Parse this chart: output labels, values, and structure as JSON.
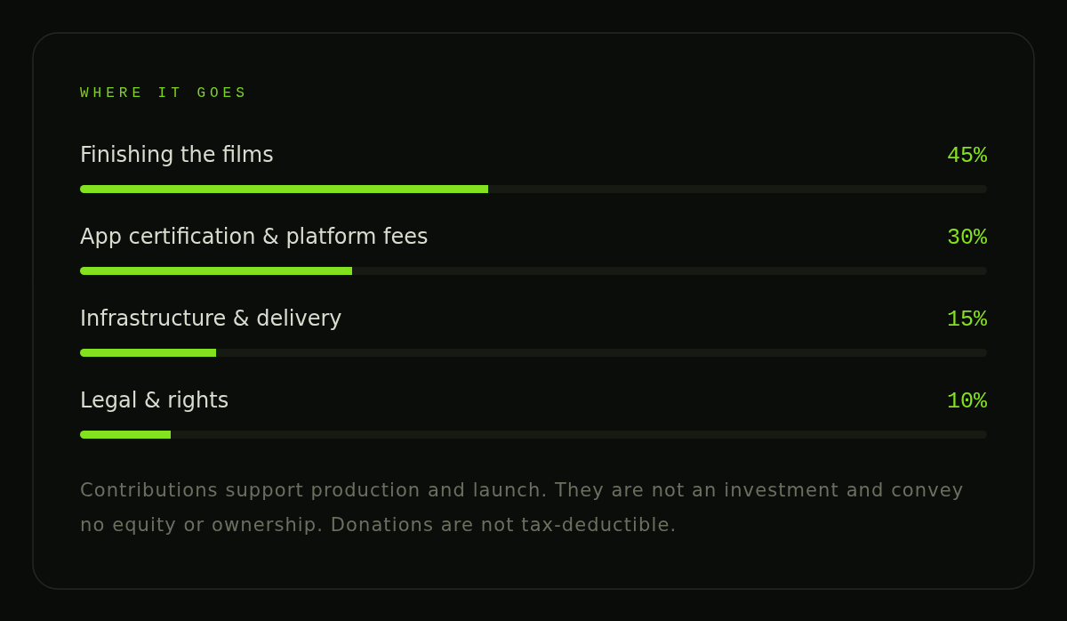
{
  "chart_data": {
    "type": "bar",
    "orientation": "horizontal",
    "title": "WHERE IT GOES",
    "categories": [
      "Finishing the films",
      "App certification & platform fees",
      "Infrastructure & delivery",
      "Legal & rights"
    ],
    "values": [
      45,
      30,
      15,
      10
    ],
    "value_labels": [
      "45%",
      "30%",
      "15%",
      "10%"
    ],
    "color": "#84e11f",
    "xlim": [
      0,
      100
    ],
    "annotations": [
      "Contributions support production and launch. They are not an investment and convey no equity or ownership. Donations are not tax-deductible."
    ]
  }
}
